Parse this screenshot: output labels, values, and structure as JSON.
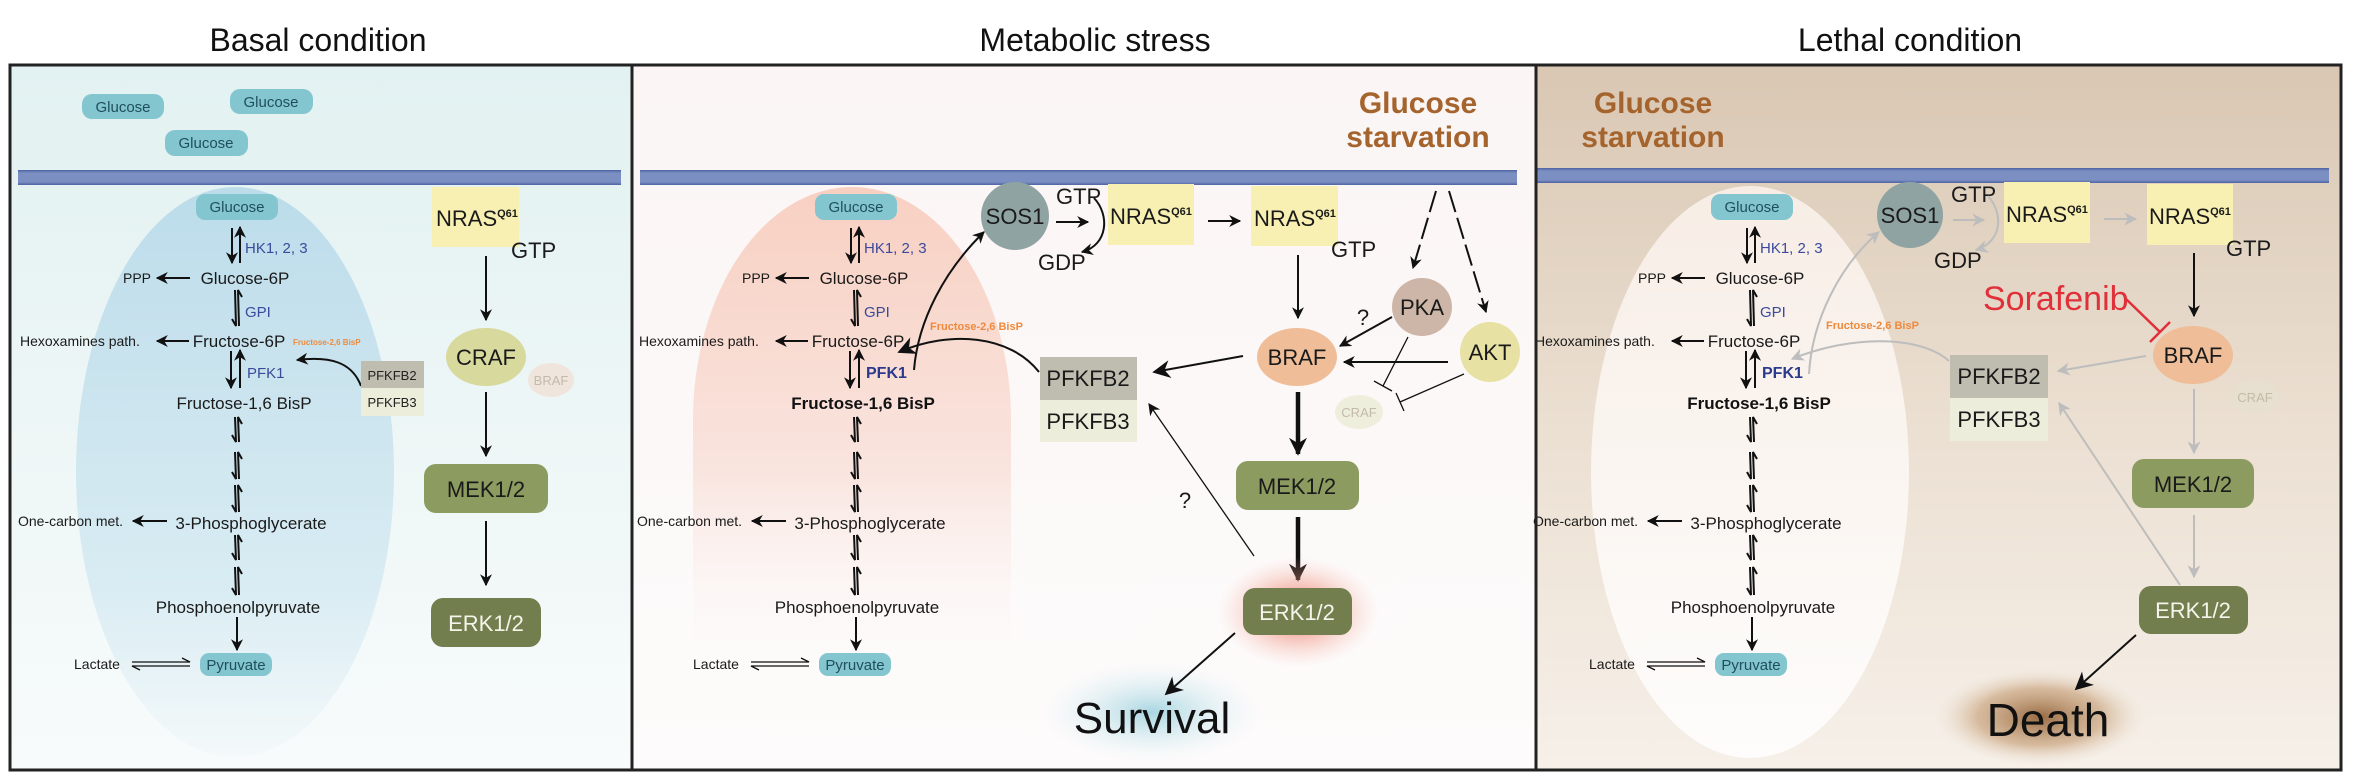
{
  "titles": {
    "basal": "Basal condition",
    "stress": "Metabolic stress",
    "lethal": "Lethal condition"
  },
  "glycolysis": {
    "glucose": "Glucose",
    "hk": "HK1, 2, 3",
    "g6p": "Glucose-6P",
    "ppp": "PPP",
    "gpi": "GPI",
    "f6p": "Fructose-6P",
    "hexosamines": "Hexoxamines path.",
    "f26bp": "Fructose-2,6 BisP",
    "pfk1": "PFK1",
    "f16bp": "Fructose-1,6 BisP",
    "pg3": "3-Phosphoglycerate",
    "one_carbon": "One-carbon met.",
    "pep": "Phosphoenolpyruvate",
    "pyruvate": "Pyruvate",
    "lactate": "Lactate"
  },
  "basal": {
    "extracellular_glucose": [
      "Glucose",
      "Glucose",
      "Glucose"
    ],
    "nras": "NRAS",
    "nras_sup": "Q61",
    "gtp": "GTP",
    "craf": "CRAF",
    "braf": "BRAF",
    "mek": "MEK1/2",
    "erk": "ERK1/2",
    "pfkfb2": "PFKFB2",
    "pfkfb3": "PFKFB3"
  },
  "stress": {
    "starvation_line1": "Glucose",
    "starvation_line2": "starvation",
    "sos1": "SOS1",
    "gtp_in": "GTP",
    "gdp": "GDP",
    "nras": "NRAS",
    "nras_sup": "Q61",
    "gtp": "GTP",
    "pka": "PKA",
    "akt": "AKT",
    "question_pka": "?",
    "question_erk": "?",
    "braf": "BRAF",
    "craf": "CRAF",
    "mek": "MEK1/2",
    "erk": "ERK1/2",
    "pfkfb2": "PFKFB2",
    "pfkfb3": "PFKFB3",
    "outcome": "Survival"
  },
  "lethal": {
    "starvation_line1": "Glucose",
    "starvation_line2": "starvation",
    "sos1": "SOS1",
    "gtp_in": "GTP",
    "gdp": "GDP",
    "nras": "NRAS",
    "nras_sup": "Q61",
    "gtp": "GTP",
    "drug": "Sorafenib",
    "braf": "BRAF",
    "craf": "CRAF",
    "mek": "MEK1/2",
    "erk": "ERK1/2",
    "pfkfb2": "PFKFB2",
    "pfkfb3": "PFKFB3",
    "outcome": "Death"
  },
  "colors": {
    "membrane": "#7b8fc2",
    "glucose_pill": "#84c6d0",
    "nras": "#f7f0b2",
    "craf": "#d8d99c",
    "braf": "#efbd97",
    "pka": "#cdb6a7",
    "akt": "#e7e1a3",
    "sos1": "#8fa3a3",
    "mek": "#8c9b5f",
    "erk": "#737e4e",
    "pfkfb2": "#bebdaf",
    "pfkfb3": "#ecedda",
    "starvation": "#a5642d",
    "sorafenib": "#e0303a",
    "enzyme": "#3b4a9c",
    "f26bp": "#ee8a3c"
  }
}
